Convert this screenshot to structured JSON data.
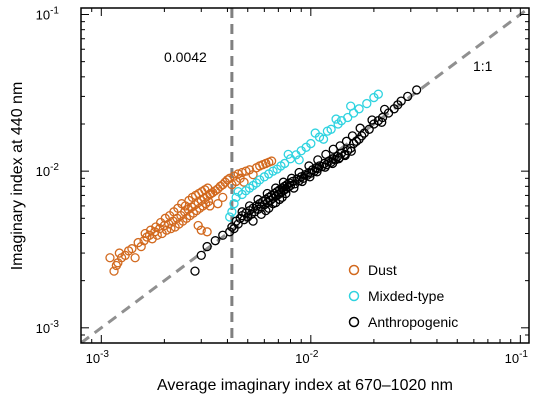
{
  "chart_data": {
    "type": "scatter",
    "xlabel": "Average imaginary index at 670–1020 nm",
    "ylabel": "Imaginary index at 440 nm",
    "xscale": "log",
    "yscale": "log",
    "xlim": [
      0.0008,
      0.11
    ],
    "ylim": [
      0.0008,
      0.11
    ],
    "x_ticks": [
      {
        "value": 0.001,
        "label": "10",
        "exp": "-3"
      },
      {
        "value": 0.01,
        "label": "10",
        "exp": "-2"
      },
      {
        "value": 0.1,
        "label": "10",
        "exp": "-1"
      }
    ],
    "y_ticks": [
      {
        "value": 0.001,
        "label": "10",
        "exp": "-3"
      },
      {
        "value": 0.01,
        "label": "10",
        "exp": "-2"
      },
      {
        "value": 0.1,
        "label": "10",
        "exp": "-1"
      }
    ],
    "reference_lines": {
      "vertical": {
        "x": 0.0042,
        "label": "0.0042",
        "color": "#808080",
        "style": "dashed"
      },
      "one_to_one": {
        "label": "1:1",
        "color": "#909090",
        "style": "dashed"
      }
    },
    "legend": {
      "position": "bottom-right"
    },
    "marker": "open-circle",
    "series": [
      {
        "name": "Dust",
        "color": "#D2691E",
        "points": [
          [
            0.0011,
            0.0028
          ],
          [
            0.00115,
            0.0023
          ],
          [
            0.00118,
            0.0025
          ],
          [
            0.0012,
            0.0026
          ],
          [
            0.00122,
            0.003
          ],
          [
            0.00125,
            0.0028
          ],
          [
            0.0013,
            0.0029
          ],
          [
            0.00135,
            0.0031
          ],
          [
            0.0014,
            0.0032
          ],
          [
            0.00145,
            0.0028
          ],
          [
            0.0015,
            0.0035
          ],
          [
            0.00155,
            0.0033
          ],
          [
            0.0016,
            0.0036
          ],
          [
            0.00162,
            0.004
          ],
          [
            0.00165,
            0.0038
          ],
          [
            0.0017,
            0.0039
          ],
          [
            0.00172,
            0.0042
          ],
          [
            0.00175,
            0.0037
          ],
          [
            0.0018,
            0.0041
          ],
          [
            0.00182,
            0.0044
          ],
          [
            0.00185,
            0.0039
          ],
          [
            0.0019,
            0.0043
          ],
          [
            0.00192,
            0.0047
          ],
          [
            0.00195,
            0.004
          ],
          [
            0.002,
            0.0045
          ],
          [
            0.00202,
            0.005
          ],
          [
            0.00205,
            0.0042
          ],
          [
            0.0021,
            0.0046
          ],
          [
            0.00212,
            0.0052
          ],
          [
            0.00215,
            0.0043
          ],
          [
            0.0022,
            0.0048
          ],
          [
            0.00222,
            0.0055
          ],
          [
            0.00225,
            0.0044
          ],
          [
            0.0023,
            0.005
          ],
          [
            0.00232,
            0.0058
          ],
          [
            0.00235,
            0.0046
          ],
          [
            0.0024,
            0.0052
          ],
          [
            0.00242,
            0.0062
          ],
          [
            0.00245,
            0.0048
          ],
          [
            0.0025,
            0.0055
          ],
          [
            0.00252,
            0.006
          ],
          [
            0.00255,
            0.005
          ],
          [
            0.0026,
            0.0057
          ],
          [
            0.00262,
            0.0065
          ],
          [
            0.00265,
            0.0052
          ],
          [
            0.0027,
            0.0059
          ],
          [
            0.00272,
            0.0068
          ],
          [
            0.00275,
            0.0054
          ],
          [
            0.0028,
            0.0061
          ],
          [
            0.00282,
            0.007
          ],
          [
            0.00285,
            0.0056
          ],
          [
            0.0029,
            0.0063
          ],
          [
            0.00292,
            0.0072
          ],
          [
            0.00295,
            0.0058
          ],
          [
            0.003,
            0.0065
          ],
          [
            0.00302,
            0.0074
          ],
          [
            0.00305,
            0.006
          ],
          [
            0.0031,
            0.0067
          ],
          [
            0.00312,
            0.0076
          ],
          [
            0.00315,
            0.0062
          ],
          [
            0.0032,
            0.0069
          ],
          [
            0.00322,
            0.0078
          ],
          [
            0.00325,
            0.0064
          ],
          [
            0.0033,
            0.0071
          ],
          [
            0.00332,
            0.0072
          ],
          [
            0.0034,
            0.0073
          ],
          [
            0.0035,
            0.0075
          ],
          [
            0.0036,
            0.0077
          ],
          [
            0.0037,
            0.008
          ],
          [
            0.0038,
            0.0082
          ],
          [
            0.0039,
            0.0085
          ],
          [
            0.004,
            0.0088
          ],
          [
            0.0041,
            0.009
          ],
          [
            0.0043,
            0.0093
          ],
          [
            0.0045,
            0.0096
          ],
          [
            0.0047,
            0.0098
          ],
          [
            0.0049,
            0.01
          ],
          [
            0.0051,
            0.0102
          ],
          [
            0.0053,
            0.0095
          ],
          [
            0.0055,
            0.0105
          ],
          [
            0.0057,
            0.0108
          ],
          [
            0.0059,
            0.011
          ],
          [
            0.0061,
            0.0112
          ],
          [
            0.0063,
            0.0114
          ],
          [
            0.0065,
            0.0116
          ],
          [
            0.0029,
            0.0045
          ],
          [
            0.003,
            0.0042
          ],
          [
            0.0032,
            0.0041
          ],
          [
            0.0033,
            0.006
          ],
          [
            0.0036,
            0.0062
          ],
          [
            0.0038,
            0.0068
          ],
          [
            0.0042,
            0.0082
          ],
          [
            0.0044,
            0.0086
          ],
          [
            0.0046,
            0.009
          ],
          [
            0.0048,
            0.0085
          ]
        ]
      },
      {
        "name": "Mixded-type",
        "color": "#2FD3E0",
        "points": [
          [
            0.0041,
            0.0051
          ],
          [
            0.0042,
            0.0055
          ],
          [
            0.0043,
            0.0062
          ],
          [
            0.0044,
            0.0068
          ],
          [
            0.0045,
            0.0074
          ],
          [
            0.0047,
            0.0071
          ],
          [
            0.0049,
            0.0075
          ],
          [
            0.0051,
            0.0078
          ],
          [
            0.0053,
            0.0081
          ],
          [
            0.0055,
            0.0084
          ],
          [
            0.0057,
            0.0088
          ],
          [
            0.006,
            0.0092
          ],
          [
            0.0063,
            0.0096
          ],
          [
            0.0066,
            0.01
          ],
          [
            0.0069,
            0.0103
          ],
          [
            0.0072,
            0.0108
          ],
          [
            0.0075,
            0.0112
          ],
          [
            0.008,
            0.012
          ],
          [
            0.0085,
            0.0127
          ],
          [
            0.009,
            0.0135
          ],
          [
            0.0095,
            0.0142
          ],
          [
            0.01,
            0.015
          ],
          [
            0.011,
            0.0165
          ],
          [
            0.012,
            0.018
          ],
          [
            0.0125,
            0.0185
          ],
          [
            0.0135,
            0.02
          ],
          [
            0.014,
            0.021
          ],
          [
            0.015,
            0.022
          ],
          [
            0.016,
            0.0235
          ],
          [
            0.017,
            0.025
          ],
          [
            0.0185,
            0.027
          ],
          [
            0.02,
            0.0295
          ],
          [
            0.021,
            0.031
          ],
          [
            0.0078,
            0.0128
          ],
          [
            0.0088,
            0.0118
          ],
          [
            0.0105,
            0.0175
          ],
          [
            0.0115,
            0.016
          ],
          [
            0.0132,
            0.0215
          ],
          [
            0.0155,
            0.026
          ]
        ]
      },
      {
        "name": "Anthropogenic",
        "color": "#000000",
        "points": [
          [
            0.0028,
            0.0023
          ],
          [
            0.003,
            0.0029
          ],
          [
            0.0032,
            0.0033
          ],
          [
            0.0035,
            0.0036
          ],
          [
            0.0038,
            0.0039
          ],
          [
            0.0041,
            0.0041
          ],
          [
            0.0042,
            0.0044
          ],
          [
            0.0043,
            0.0043
          ],
          [
            0.0044,
            0.0048
          ],
          [
            0.0045,
            0.0046
          ],
          [
            0.0046,
            0.005
          ],
          [
            0.0047,
            0.0052
          ],
          [
            0.0048,
            0.0049
          ],
          [
            0.0049,
            0.0054
          ],
          [
            0.005,
            0.0051
          ],
          [
            0.0051,
            0.0056
          ],
          [
            0.0052,
            0.0053
          ],
          [
            0.0053,
            0.0058
          ],
          [
            0.0054,
            0.0055
          ],
          [
            0.0055,
            0.006
          ],
          [
            0.0056,
            0.0057
          ],
          [
            0.0057,
            0.0062
          ],
          [
            0.0058,
            0.0059
          ],
          [
            0.0059,
            0.0064
          ],
          [
            0.006,
            0.0061
          ],
          [
            0.0061,
            0.0066
          ],
          [
            0.0062,
            0.0063
          ],
          [
            0.0063,
            0.0068
          ],
          [
            0.0064,
            0.0065
          ],
          [
            0.0065,
            0.007
          ],
          [
            0.0066,
            0.0067
          ],
          [
            0.0067,
            0.0072
          ],
          [
            0.0068,
            0.0069
          ],
          [
            0.0069,
            0.0074
          ],
          [
            0.007,
            0.0071
          ],
          [
            0.0071,
            0.0076
          ],
          [
            0.0072,
            0.0073
          ],
          [
            0.0073,
            0.0078
          ],
          [
            0.0074,
            0.0075
          ],
          [
            0.0075,
            0.008
          ],
          [
            0.0076,
            0.0077
          ],
          [
            0.0077,
            0.0082
          ],
          [
            0.0078,
            0.0079
          ],
          [
            0.0079,
            0.0084
          ],
          [
            0.008,
            0.0081
          ],
          [
            0.0082,
            0.0086
          ],
          [
            0.0084,
            0.0083
          ],
          [
            0.0086,
            0.0089
          ],
          [
            0.0088,
            0.0087
          ],
          [
            0.009,
            0.0092
          ],
          [
            0.0092,
            0.009
          ],
          [
            0.0094,
            0.0095
          ],
          [
            0.0096,
            0.0094
          ],
          [
            0.0098,
            0.0098
          ],
          [
            0.01,
            0.0097
          ],
          [
            0.0102,
            0.0102
          ],
          [
            0.0104,
            0.01
          ],
          [
            0.0106,
            0.0105
          ],
          [
            0.0108,
            0.0104
          ],
          [
            0.011,
            0.0108
          ],
          [
            0.0113,
            0.0107
          ],
          [
            0.0116,
            0.0112
          ],
          [
            0.0119,
            0.011
          ],
          [
            0.0122,
            0.0116
          ],
          [
            0.0125,
            0.0114
          ],
          [
            0.0128,
            0.012
          ],
          [
            0.0131,
            0.0118
          ],
          [
            0.0134,
            0.0124
          ],
          [
            0.0137,
            0.0122
          ],
          [
            0.014,
            0.013
          ],
          [
            0.0145,
            0.0128
          ],
          [
            0.015,
            0.0135
          ],
          [
            0.0155,
            0.014
          ],
          [
            0.016,
            0.015
          ],
          [
            0.0165,
            0.0155
          ],
          [
            0.017,
            0.016
          ],
          [
            0.0175,
            0.0168
          ],
          [
            0.018,
            0.0175
          ],
          [
            0.019,
            0.0185
          ],
          [
            0.02,
            0.02
          ],
          [
            0.021,
            0.021
          ],
          [
            0.022,
            0.022
          ],
          [
            0.0235,
            0.0235
          ],
          [
            0.025,
            0.025
          ],
          [
            0.026,
            0.0265
          ],
          [
            0.027,
            0.028
          ],
          [
            0.029,
            0.03
          ],
          [
            0.032,
            0.033
          ],
          [
            0.0225,
            0.0248
          ],
          [
            0.0218,
            0.0205
          ],
          [
            0.0196,
            0.0212
          ],
          [
            0.0172,
            0.0188
          ],
          [
            0.0158,
            0.0168
          ],
          [
            0.0148,
            0.0155
          ],
          [
            0.0138,
            0.0145
          ],
          [
            0.0128,
            0.0138
          ],
          [
            0.0118,
            0.0128
          ],
          [
            0.0108,
            0.0118
          ],
          [
            0.0098,
            0.0108
          ],
          [
            0.0088,
            0.0098
          ],
          [
            0.0081,
            0.009
          ],
          [
            0.0074,
            0.0085
          ],
          [
            0.0068,
            0.0078
          ],
          [
            0.0062,
            0.0072
          ],
          [
            0.0056,
            0.0066
          ],
          [
            0.0051,
            0.006
          ],
          [
            0.0047,
            0.0055
          ],
          [
            0.0061,
            0.0056
          ],
          [
            0.0066,
            0.0062
          ],
          [
            0.0071,
            0.0066
          ],
          [
            0.0076,
            0.0072
          ],
          [
            0.0083,
            0.0078
          ],
          [
            0.0091,
            0.0086
          ],
          [
            0.0099,
            0.0092
          ],
          [
            0.0107,
            0.0099
          ],
          [
            0.0117,
            0.0106
          ],
          [
            0.0127,
            0.0112
          ],
          [
            0.0136,
            0.012
          ],
          [
            0.0146,
            0.0126
          ],
          [
            0.0156,
            0.0134
          ],
          [
            0.0053,
            0.0048
          ],
          [
            0.0058,
            0.0053
          ],
          [
            0.0063,
            0.0058
          ],
          [
            0.0068,
            0.0063
          ],
          [
            0.0073,
            0.0068
          ]
        ]
      }
    ]
  }
}
